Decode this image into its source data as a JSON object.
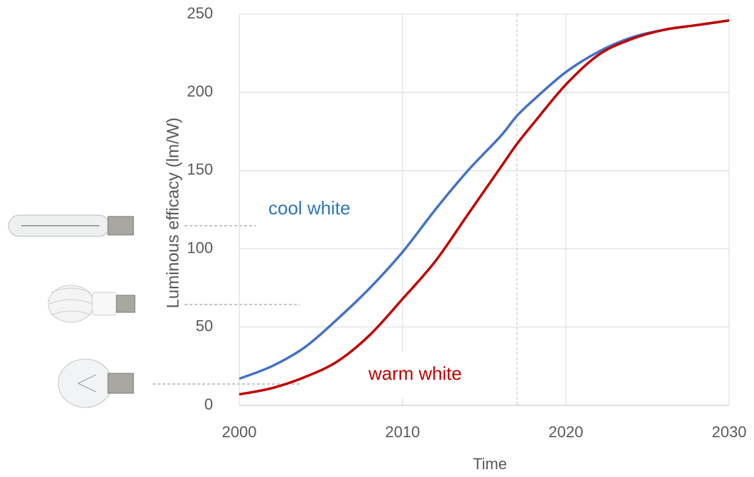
{
  "chart_data": {
    "type": "line",
    "x": [
      2000,
      2002,
      2004,
      2006,
      2008,
      2010,
      2012,
      2014,
      2016,
      2017,
      2018,
      2020,
      2022,
      2024,
      2026,
      2028,
      2030
    ],
    "series": [
      {
        "name": "cool white",
        "color": "#4472c4",
        "label_color": "#2e75b6",
        "values": [
          17,
          25,
          37,
          55,
          75,
          98,
          125,
          150,
          172,
          185,
          195,
          213,
          226,
          235,
          240,
          243,
          246
        ]
      },
      {
        "name": "warm white",
        "color": "#c00000",
        "label_color": "#c00000",
        "values": [
          7,
          11,
          18,
          28,
          45,
          68,
          92,
          122,
          152,
          167,
          180,
          205,
          224,
          234,
          240,
          243,
          246
        ]
      }
    ],
    "xlabel": "Time",
    "ylabel": "Luminous efficacy (lm/W)",
    "xlim": [
      2000,
      2030
    ],
    "xticks": [
      2000,
      2010,
      2020,
      2030
    ],
    "ylim": [
      0,
      250
    ],
    "yticks": [
      0,
      50,
      100,
      150,
      200,
      250
    ],
    "grid": true,
    "vline": 2017
  }
}
